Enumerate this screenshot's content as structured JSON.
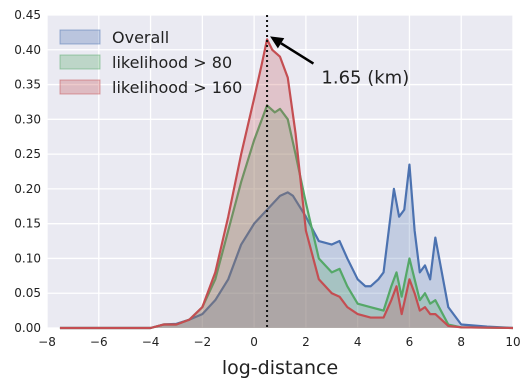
{
  "chart_data": {
    "type": "area",
    "xlabel": "log-distance",
    "ylabel": "",
    "xlim": [
      -8,
      10
    ],
    "ylim": [
      0,
      0.45
    ],
    "xticks": [
      -8,
      -6,
      -4,
      -2,
      0,
      2,
      4,
      6,
      8,
      10
    ],
    "yticks": [
      0.0,
      0.05,
      0.1,
      0.15,
      0.2,
      0.25,
      0.3,
      0.35,
      0.4,
      0.45
    ],
    "grid": true,
    "legend_position": "top-left",
    "vline_x": 0.5,
    "annotation": {
      "text": "1.65 (km)",
      "x": 0.5,
      "y": 0.415,
      "text_x": 2.6,
      "text_y": 0.36
    },
    "series": [
      {
        "name": "Overall",
        "color": "#4c72b0",
        "x": [
          -7.5,
          -4,
          -3.5,
          -3,
          -2.5,
          -2,
          -1.5,
          -1,
          -0.5,
          0,
          0.5,
          1,
          1.3,
          1.5,
          2,
          2.5,
          3,
          3.3,
          3.6,
          4,
          4.3,
          4.5,
          4.8,
          5,
          5.2,
          5.4,
          5.6,
          5.8,
          6,
          6.2,
          6.4,
          6.6,
          6.8,
          7,
          7.5,
          8,
          9,
          10
        ],
        "y": [
          0,
          0,
          0.005,
          0.006,
          0.012,
          0.02,
          0.04,
          0.07,
          0.12,
          0.15,
          0.17,
          0.19,
          0.195,
          0.19,
          0.16,
          0.125,
          0.12,
          0.125,
          0.1,
          0.07,
          0.06,
          0.06,
          0.07,
          0.08,
          0.14,
          0.2,
          0.16,
          0.17,
          0.235,
          0.14,
          0.08,
          0.09,
          0.07,
          0.13,
          0.03,
          0.005,
          0.002,
          0
        ]
      },
      {
        "name": "likelihood > 80",
        "color": "#55a868",
        "x": [
          -7.5,
          -4,
          -3.5,
          -3,
          -2.5,
          -2,
          -1.5,
          -1,
          -0.5,
          0,
          0.3,
          0.5,
          0.8,
          1.0,
          1.3,
          1.6,
          2,
          2.5,
          3,
          3.3,
          3.6,
          4,
          4.5,
          5,
          5.3,
          5.5,
          5.7,
          6,
          6.2,
          6.4,
          6.6,
          6.8,
          7,
          7.5,
          8,
          10
        ],
        "y": [
          0,
          0,
          0.005,
          0.005,
          0.012,
          0.03,
          0.07,
          0.14,
          0.21,
          0.27,
          0.3,
          0.32,
          0.31,
          0.315,
          0.3,
          0.25,
          0.18,
          0.1,
          0.08,
          0.085,
          0.06,
          0.035,
          0.03,
          0.025,
          0.06,
          0.08,
          0.045,
          0.1,
          0.07,
          0.04,
          0.05,
          0.035,
          0.04,
          0.005,
          0.001,
          0
        ]
      },
      {
        "name": "likelihood > 160",
        "color": "#c44e52",
        "x": [
          -7.5,
          -4,
          -3.5,
          -3,
          -2.5,
          -2,
          -1.5,
          -1,
          -0.5,
          0,
          0.3,
          0.5,
          0.7,
          1.0,
          1.3,
          1.6,
          2,
          2.5,
          3,
          3.3,
          3.6,
          4,
          4.5,
          5,
          5.3,
          5.5,
          5.7,
          6,
          6.2,
          6.4,
          6.6,
          6.8,
          7,
          7.5,
          8,
          10
        ],
        "y": [
          0,
          0,
          0.005,
          0.005,
          0.012,
          0.03,
          0.08,
          0.16,
          0.25,
          0.33,
          0.38,
          0.415,
          0.4,
          0.39,
          0.36,
          0.28,
          0.14,
          0.07,
          0.05,
          0.045,
          0.03,
          0.02,
          0.015,
          0.015,
          0.04,
          0.06,
          0.02,
          0.07,
          0.05,
          0.025,
          0.03,
          0.02,
          0.02,
          0.003,
          0.001,
          0
        ]
      }
    ]
  }
}
